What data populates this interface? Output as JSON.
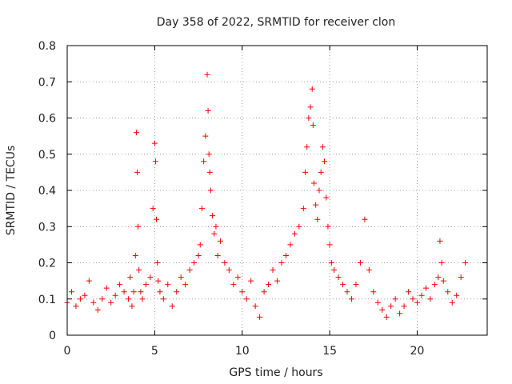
{
  "chart_data": {
    "type": "scatter",
    "title": "Day 358 of 2022, SRMTID for receiver clon",
    "xlabel": "GPS time / hours",
    "ylabel": "SRMTID / TECUs",
    "xlim": [
      0,
      24
    ],
    "ylim": [
      0,
      0.8
    ],
    "xticks": [
      0,
      5,
      10,
      15,
      20
    ],
    "xtick_labels": [
      "0",
      "5",
      "10",
      "15",
      "20"
    ],
    "yticks": [
      0,
      0.1,
      0.2,
      0.3,
      0.4,
      0.5,
      0.6,
      0.7,
      0.8
    ],
    "ytick_labels": [
      "0",
      "0.1",
      "0.2",
      "0.3",
      "0.4",
      "0.5",
      "0.6",
      "0.7",
      "0.8"
    ],
    "grid": true,
    "marker": "+",
    "color": "#ff0000",
    "series": [
      {
        "name": "SRMTID",
        "x": [
          0.0,
          0.25,
          0.5,
          0.75,
          1.0,
          1.25,
          1.5,
          1.75,
          2.0,
          2.25,
          2.5,
          2.75,
          3.0,
          3.25,
          3.5,
          3.6,
          3.7,
          3.8,
          3.9,
          3.95,
          4.0,
          4.05,
          4.1,
          4.2,
          4.3,
          4.5,
          4.75,
          4.9,
          5.0,
          5.05,
          5.1,
          5.15,
          5.2,
          5.3,
          5.5,
          5.75,
          6.0,
          6.25,
          6.5,
          6.75,
          7.0,
          7.25,
          7.5,
          7.6,
          7.7,
          7.8,
          7.9,
          8.0,
          8.05,
          8.1,
          8.15,
          8.2,
          8.3,
          8.4,
          8.5,
          8.6,
          8.75,
          9.0,
          9.25,
          9.5,
          9.75,
          10.0,
          10.25,
          10.5,
          10.75,
          11.0,
          11.25,
          11.5,
          11.75,
          12.0,
          12.25,
          12.5,
          12.75,
          13.0,
          13.25,
          13.5,
          13.6,
          13.7,
          13.8,
          13.9,
          14.0,
          14.05,
          14.1,
          14.2,
          14.3,
          14.4,
          14.5,
          14.6,
          14.7,
          14.8,
          14.9,
          15.0,
          15.1,
          15.25,
          15.5,
          15.75,
          16.0,
          16.25,
          16.5,
          16.75,
          17.0,
          17.25,
          17.5,
          17.75,
          18.0,
          18.25,
          18.5,
          18.75,
          19.0,
          19.25,
          19.5,
          19.75,
          20.0,
          20.25,
          20.5,
          20.75,
          21.0,
          21.2,
          21.3,
          21.4,
          21.5,
          21.75,
          22.0,
          22.25,
          22.5,
          22.75
        ],
        "y": [
          0.09,
          0.12,
          0.08,
          0.1,
          0.11,
          0.15,
          0.09,
          0.07,
          0.1,
          0.13,
          0.09,
          0.11,
          0.14,
          0.12,
          0.1,
          0.16,
          0.08,
          0.12,
          0.22,
          0.56,
          0.45,
          0.3,
          0.18,
          0.12,
          0.1,
          0.14,
          0.16,
          0.35,
          0.53,
          0.48,
          0.32,
          0.2,
          0.15,
          0.12,
          0.1,
          0.14,
          0.08,
          0.12,
          0.16,
          0.14,
          0.18,
          0.2,
          0.22,
          0.25,
          0.35,
          0.48,
          0.55,
          0.72,
          0.62,
          0.5,
          0.45,
          0.4,
          0.33,
          0.28,
          0.3,
          0.22,
          0.26,
          0.2,
          0.18,
          0.14,
          0.16,
          0.12,
          0.1,
          0.15,
          0.08,
          0.05,
          0.12,
          0.14,
          0.18,
          0.15,
          0.2,
          0.22,
          0.25,
          0.28,
          0.3,
          0.35,
          0.45,
          0.52,
          0.6,
          0.63,
          0.68,
          0.58,
          0.42,
          0.36,
          0.32,
          0.4,
          0.45,
          0.52,
          0.48,
          0.38,
          0.3,
          0.25,
          0.2,
          0.18,
          0.16,
          0.14,
          0.12,
          0.1,
          0.14,
          0.2,
          0.32,
          0.18,
          0.12,
          0.09,
          0.07,
          0.05,
          0.08,
          0.1,
          0.06,
          0.08,
          0.12,
          0.1,
          0.09,
          0.11,
          0.13,
          0.1,
          0.14,
          0.16,
          0.26,
          0.2,
          0.15,
          0.12,
          0.09,
          0.11,
          0.16,
          0.2
        ]
      }
    ]
  }
}
